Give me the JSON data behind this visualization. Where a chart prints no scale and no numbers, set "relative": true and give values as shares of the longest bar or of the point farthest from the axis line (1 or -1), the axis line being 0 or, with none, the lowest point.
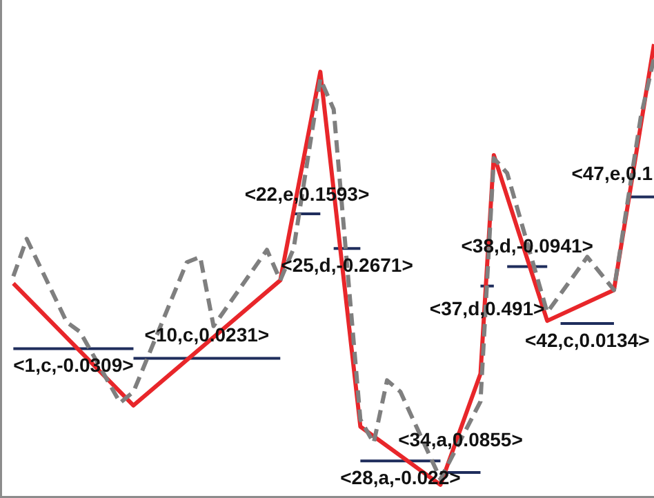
{
  "chart_data": {
    "type": "line",
    "relative": true,
    "grid": false,
    "legend": false,
    "marker": "none",
    "categories": [
      null,
      null,
      null,
      null,
      null,
      null,
      null,
      null,
      null,
      null,
      null,
      null,
      null,
      null,
      null,
      null,
      null,
      null,
      null,
      null,
      null,
      null,
      null,
      null,
      null,
      null,
      null,
      null,
      null,
      null,
      null,
      null,
      null,
      null,
      null,
      null,
      null,
      null,
      null,
      null,
      null,
      null,
      null,
      null,
      null,
      null,
      null,
      null,
      null,
      null
    ],
    "series": [
      {
        "color": "#7f7f7f",
        "line_style": "dashed",
        "values": [
          null,
          0.473,
          0.558,
          null,
          null,
          0.369,
          0.347,
          null,
          null,
          0.186,
          0.211,
          null,
          null,
          null,
          0.505,
          0.517,
          0.36,
          null,
          null,
          null,
          0.533,
          0.464,
          0.536,
          null,
          0.921,
          0.852,
          null,
          0.148,
          0.095,
          0.237,
          0.211,
          null,
          null,
          0.013,
          null,
          null,
          0.189,
          0.741,
          0.707,
          null,
          null,
          0.391,
          null,
          null,
          0.517,
          null,
          0.442,
          null,
          0.833,
          0.968
        ]
      },
      {
        "color": "#e8262a",
        "line_style": "solid",
        "values": [
          null,
          0.457,
          null,
          null,
          null,
          null,
          null,
          null,
          null,
          null,
          0.18,
          null,
          null,
          null,
          null,
          null,
          null,
          null,
          null,
          null,
          null,
          0.464,
          null,
          null,
          0.937,
          null,
          null,
          0.132,
          null,
          null,
          null,
          null,
          null,
          0,
          null,
          null,
          0.252,
          0.748,
          null,
          null,
          null,
          0.372,
          null,
          null,
          null,
          null,
          0.442,
          null,
          null,
          1
        ]
      },
      {
        "color": "#1f2d5c",
        "line_style": "solid",
        "values": [
          null,
          0.309,
          null,
          null,
          null,
          null,
          null,
          null,
          null,
          null,
          0.309,
          null,
          null,
          null,
          null,
          null,
          null,
          null,
          null,
          null,
          null,
          null,
          null,
          null,
          null,
          null,
          null,
          null,
          null,
          null,
          null,
          null,
          null,
          null,
          null,
          null,
          null,
          null,
          null,
          null,
          null,
          null,
          null,
          null,
          null,
          null,
          null,
          null,
          null,
          null
        ]
      },
      {
        "color": "#1f2d5c",
        "line_style": "solid",
        "values": [
          null,
          null,
          null,
          null,
          null,
          null,
          null,
          null,
          null,
          null,
          0.287,
          null,
          null,
          null,
          null,
          null,
          null,
          null,
          null,
          null,
          null,
          0.287,
          null,
          null,
          null,
          null,
          null,
          null,
          null,
          null,
          null,
          null,
          null,
          null,
          null,
          null,
          null,
          null,
          null,
          null,
          null,
          null,
          null,
          null,
          null,
          null,
          null,
          null,
          null,
          null
        ]
      },
      {
        "color": "#1f2d5c",
        "line_style": "solid",
        "values": [
          null,
          null,
          null,
          null,
          null,
          null,
          null,
          null,
          null,
          null,
          null,
          null,
          null,
          null,
          null,
          null,
          null,
          null,
          null,
          null,
          null,
          null,
          0.615,
          null,
          0.615,
          null,
          null,
          null,
          null,
          null,
          null,
          null,
          null,
          null,
          null,
          null,
          null,
          null,
          null,
          null,
          null,
          null,
          null,
          null,
          null,
          null,
          null,
          null,
          null,
          null
        ]
      },
      {
        "color": "#1f2d5c",
        "line_style": "solid",
        "values": [
          null,
          null,
          null,
          null,
          null,
          null,
          null,
          null,
          null,
          null,
          null,
          null,
          null,
          null,
          null,
          null,
          null,
          null,
          null,
          null,
          null,
          null,
          null,
          null,
          null,
          0.536,
          null,
          0.536,
          null,
          null,
          null,
          null,
          null,
          null,
          null,
          null,
          null,
          null,
          null,
          null,
          null,
          null,
          null,
          null,
          null,
          null,
          null,
          null,
          null,
          null
        ]
      },
      {
        "color": "#1f2d5c",
        "line_style": "solid",
        "values": [
          null,
          null,
          null,
          null,
          null,
          null,
          null,
          null,
          null,
          null,
          null,
          null,
          null,
          null,
          null,
          null,
          null,
          null,
          null,
          null,
          null,
          null,
          null,
          null,
          null,
          null,
          null,
          0.054,
          null,
          null,
          null,
          null,
          null,
          0.054,
          null,
          null,
          null,
          null,
          null,
          null,
          null,
          null,
          null,
          null,
          null,
          null,
          null,
          null,
          null,
          null
        ]
      },
      {
        "color": "#1f2d5c",
        "line_style": "solid",
        "values": [
          null,
          null,
          null,
          null,
          null,
          null,
          null,
          null,
          null,
          null,
          null,
          null,
          null,
          null,
          null,
          null,
          null,
          null,
          null,
          null,
          null,
          null,
          null,
          null,
          null,
          null,
          null,
          null,
          null,
          null,
          null,
          null,
          null,
          0.028,
          null,
          null,
          0.028,
          null,
          null,
          null,
          null,
          null,
          null,
          null,
          null,
          null,
          null,
          null,
          null,
          null
        ]
      },
      {
        "color": "#1f2d5c",
        "line_style": "solid",
        "values": [
          null,
          null,
          null,
          null,
          null,
          null,
          null,
          null,
          null,
          null,
          null,
          null,
          null,
          null,
          null,
          null,
          null,
          null,
          null,
          null,
          null,
          null,
          null,
          null,
          null,
          null,
          null,
          null,
          null,
          null,
          null,
          null,
          null,
          null,
          null,
          null,
          0.451,
          0.451,
          null,
          null,
          null,
          null,
          null,
          null,
          null,
          null,
          null,
          null,
          null,
          null
        ]
      },
      {
        "color": "#1f2d5c",
        "line_style": "solid",
        "values": [
          null,
          null,
          null,
          null,
          null,
          null,
          null,
          null,
          null,
          null,
          null,
          null,
          null,
          null,
          null,
          null,
          null,
          null,
          null,
          null,
          null,
          null,
          null,
          null,
          null,
          null,
          null,
          null,
          null,
          null,
          null,
          null,
          null,
          null,
          null,
          null,
          null,
          null,
          0.495,
          null,
          null,
          0.495,
          null,
          null,
          null,
          null,
          null,
          null,
          null,
          null
        ]
      },
      {
        "color": "#1f2d5c",
        "line_style": "solid",
        "values": [
          null,
          null,
          null,
          null,
          null,
          null,
          null,
          null,
          null,
          null,
          null,
          null,
          null,
          null,
          null,
          null,
          null,
          null,
          null,
          null,
          null,
          null,
          null,
          null,
          null,
          null,
          null,
          null,
          null,
          null,
          null,
          null,
          null,
          null,
          null,
          null,
          null,
          null,
          null,
          null,
          null,
          null,
          0.366,
          null,
          null,
          null,
          0.366,
          null,
          null,
          null
        ]
      },
      {
        "color": "#1f2d5c",
        "line_style": "solid",
        "values": [
          null,
          null,
          null,
          null,
          null,
          null,
          null,
          null,
          null,
          null,
          null,
          null,
          null,
          null,
          null,
          null,
          null,
          null,
          null,
          null,
          null,
          null,
          null,
          null,
          null,
          null,
          null,
          null,
          null,
          null,
          null,
          null,
          null,
          null,
          null,
          null,
          null,
          null,
          null,
          null,
          null,
          null,
          null,
          null,
          null,
          null,
          null,
          0.653,
          null,
          0.653
        ]
      }
    ],
    "annotations": [
      "<1,c,-0.0309>",
      {
        "text": "<10,c,0.0231>",
        "y": 0.338
      },
      {
        "text": "<22,e,0.1593>",
        "y": 0.656
      },
      {
        "text": "<25,d,-0.2671>",
        "y": 0.495
      },
      "<28,a,-0.022>",
      {
        "text": "<34,a,0.0855>",
        "y": 0.1
      },
      {
        "text": "<37,d,0.491>",
        "y": 0.397
      },
      {
        "text": "<38,d,-0.0941>",
        "y": 0.539
      },
      "<42,c,0.0134>",
      "<47,e,0.1"
    ]
  }
}
